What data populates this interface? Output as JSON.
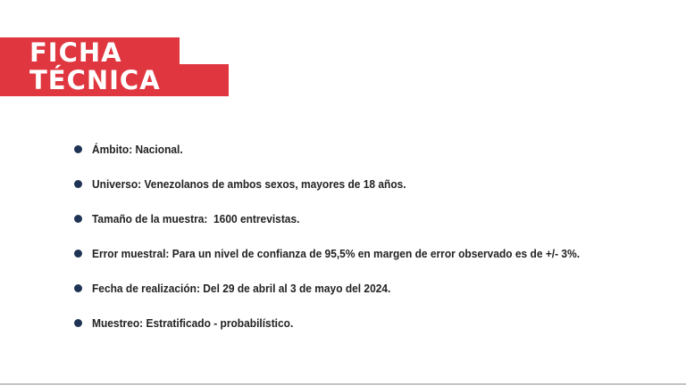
{
  "title": {
    "line1": "FICHA",
    "line2": "TÉCNICA"
  },
  "colors": {
    "title_bg": "#e0363f",
    "bullet": "#1f3455"
  },
  "items": [
    "Ámbito: Nacional.",
    "Universo: Venezolanos de ambos sexos, mayores de 18 años.",
    "Tamaño de la muestra:  1600 entrevistas.",
    "Error muestral: Para un nivel de confianza de 95,5% en margen de error observado es de +/- 3%.",
    "Fecha de realización: Del 29 de abril al 3 de mayo del 2024.",
    "Muestreo: Estratificado - probabilístico."
  ]
}
